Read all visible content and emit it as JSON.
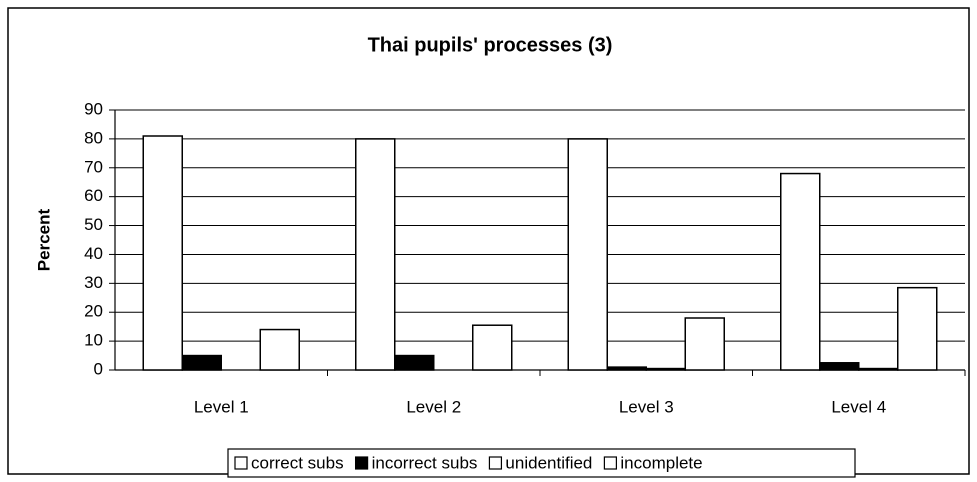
{
  "chart_data": {
    "type": "bar",
    "title": "Thai pupils' processes (3)",
    "y_label": "Percent",
    "categories": [
      "Level 1",
      "Level 2",
      "Level 3",
      "Level 4"
    ],
    "series": [
      {
        "name": "correct subs",
        "color": "#ffffff",
        "values": [
          81,
          80,
          80,
          68
        ]
      },
      {
        "name": "incorrect subs",
        "color": "#000000",
        "values": [
          5,
          5,
          1,
          2.5
        ]
      },
      {
        "name": "unidentified",
        "color": "#ffffff",
        "values": [
          0,
          0,
          0.5,
          0.5
        ]
      },
      {
        "name": "incomplete",
        "color": "#ffffff",
        "values": [
          14,
          15.5,
          18,
          28.5
        ]
      }
    ],
    "ylim": [
      0,
      90
    ],
    "yticks": [
      0,
      10,
      20,
      30,
      40,
      50,
      60,
      70,
      80,
      90
    ],
    "grid": true,
    "legend": "bottom"
  }
}
